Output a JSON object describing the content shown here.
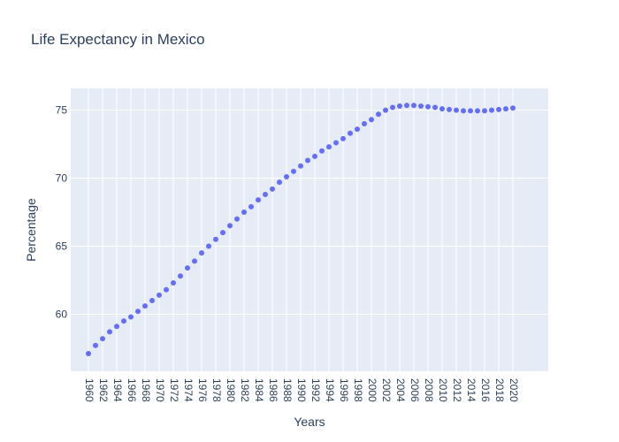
{
  "chart_data": {
    "type": "scatter",
    "title": "Life Expectancy in Mexico",
    "xlabel": "Years",
    "ylabel": "Percentage",
    "x": [
      1960,
      1961,
      1962,
      1963,
      1964,
      1965,
      1966,
      1967,
      1968,
      1969,
      1970,
      1971,
      1972,
      1973,
      1974,
      1975,
      1976,
      1977,
      1978,
      1979,
      1980,
      1981,
      1982,
      1983,
      1984,
      1985,
      1986,
      1987,
      1988,
      1989,
      1990,
      1991,
      1992,
      1993,
      1994,
      1995,
      1996,
      1997,
      1998,
      1999,
      2000,
      2001,
      2002,
      2003,
      2004,
      2005,
      2006,
      2007,
      2008,
      2009,
      2010,
      2011,
      2012,
      2013,
      2014,
      2015,
      2016,
      2017,
      2018,
      2019,
      2020
    ],
    "y": [
      57.1,
      57.7,
      58.2,
      58.7,
      59.1,
      59.5,
      59.8,
      60.2,
      60.6,
      61.0,
      61.4,
      61.8,
      62.3,
      62.8,
      63.4,
      63.9,
      64.5,
      65.0,
      65.5,
      66.0,
      66.5,
      67.0,
      67.5,
      67.9,
      68.4,
      68.8,
      69.2,
      69.7,
      70.1,
      70.5,
      70.9,
      71.3,
      71.6,
      72.0,
      72.3,
      72.6,
      72.9,
      73.3,
      73.6,
      74.0,
      74.3,
      74.7,
      75.0,
      75.2,
      75.3,
      75.35,
      75.35,
      75.3,
      75.25,
      75.2,
      75.1,
      75.05,
      75.0,
      74.95,
      74.95,
      74.95,
      74.95,
      75.0,
      75.05,
      75.1,
      75.15
    ],
    "xticks": [
      "1960",
      "1962",
      "1964",
      "1966",
      "1968",
      "1970",
      "1972",
      "1974",
      "1976",
      "1978",
      "1980",
      "1982",
      "1984",
      "1986",
      "1988",
      "1990",
      "1992",
      "1994",
      "1996",
      "1998",
      "2000",
      "2002",
      "2004",
      "2006",
      "2008",
      "2010",
      "2012",
      "2014",
      "2016",
      "2018",
      "2020"
    ],
    "yticks": [
      "60",
      "65",
      "70",
      "75"
    ],
    "xlim": [
      1957.5,
      2025
    ],
    "ylim": [
      55.8,
      76.6
    ],
    "grid": true,
    "marker_color": "#636efa",
    "plot_background": "#e5ecf6"
  }
}
